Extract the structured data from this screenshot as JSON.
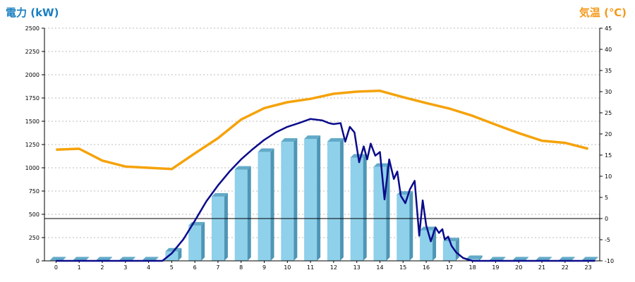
{
  "colors": {
    "left_axis": "#1a7fc1",
    "right_axis": "#f39a1b",
    "bar_front": "#8fd0ea",
    "bar_side": "#4e96b5",
    "bar_top": "#62aac8",
    "power_line": "#0b0b8c",
    "temp_line": "#f5a20a",
    "grid": "#bbbbbb"
  },
  "chart_data": {
    "type": "bar",
    "title": "",
    "y_label_left": "電力 (kW)",
    "y_label_right": "気温 (℃)",
    "grid": true,
    "left_axis": {
      "min": 0,
      "max": 2500,
      "step": 250,
      "ticks": [
        "0",
        "250",
        "500",
        "750",
        "1000",
        "1250",
        "1500",
        "1750",
        "2000",
        "2250",
        "2500"
      ]
    },
    "right_axis": {
      "min": -10,
      "max": 45,
      "step": 5,
      "ticks": [
        "-10",
        "-5",
        "0",
        "5",
        "10",
        "15",
        "20",
        "25",
        "30",
        "35",
        "40",
        "45"
      ]
    },
    "categories": [
      "0",
      "1",
      "2",
      "3",
      "4",
      "5",
      "6",
      "7",
      "8",
      "9",
      "10",
      "11",
      "12",
      "13",
      "14",
      "15",
      "16",
      "17",
      "18",
      "19",
      "20",
      "21",
      "22",
      "23"
    ],
    "series": [
      {
        "kind": "bar",
        "axis": "left",
        "values": [
          5,
          5,
          5,
          5,
          5,
          100,
          380,
          690,
          980,
          1170,
          1280,
          1310,
          1280,
          1110,
          1010,
          710,
          330,
          210,
          20,
          5,
          5,
          5,
          5,
          5
        ]
      },
      {
        "kind": "line",
        "axis": "left",
        "points": [
          [
            0,
            0
          ],
          [
            4.6,
            0
          ],
          [
            5,
            80
          ],
          [
            5.5,
            230
          ],
          [
            6,
            430
          ],
          [
            6.5,
            640
          ],
          [
            7,
            810
          ],
          [
            7.5,
            960
          ],
          [
            8,
            1090
          ],
          [
            8.5,
            1200
          ],
          [
            9,
            1300
          ],
          [
            9.5,
            1380
          ],
          [
            10,
            1440
          ],
          [
            10.5,
            1480
          ],
          [
            11,
            1525
          ],
          [
            11.5,
            1510
          ],
          [
            11.8,
            1480
          ],
          [
            12,
            1470
          ],
          [
            12.3,
            1480
          ],
          [
            12.5,
            1280
          ],
          [
            12.7,
            1440
          ],
          [
            12.9,
            1380
          ],
          [
            13.1,
            1060
          ],
          [
            13.3,
            1230
          ],
          [
            13.45,
            1090
          ],
          [
            13.6,
            1260
          ],
          [
            13.8,
            1130
          ],
          [
            14,
            1170
          ],
          [
            14.2,
            660
          ],
          [
            14.4,
            1090
          ],
          [
            14.6,
            880
          ],
          [
            14.75,
            960
          ],
          [
            14.9,
            700
          ],
          [
            15.1,
            620
          ],
          [
            15.3,
            770
          ],
          [
            15.5,
            860
          ],
          [
            15.7,
            270
          ],
          [
            15.85,
            650
          ],
          [
            16,
            380
          ],
          [
            16.2,
            210
          ],
          [
            16.4,
            360
          ],
          [
            16.55,
            300
          ],
          [
            16.7,
            340
          ],
          [
            16.8,
            230
          ],
          [
            16.95,
            260
          ],
          [
            17.1,
            160
          ],
          [
            17.3,
            90
          ],
          [
            17.6,
            30
          ],
          [
            18,
            0
          ],
          [
            23.3,
            0
          ]
        ]
      },
      {
        "kind": "line",
        "axis": "right",
        "points": [
          [
            0,
            16.3
          ],
          [
            1,
            16.5
          ],
          [
            2,
            13.7
          ],
          [
            3,
            12.3
          ],
          [
            4,
            12.0
          ],
          [
            5,
            11.7
          ],
          [
            6,
            15.4
          ],
          [
            7,
            19.0
          ],
          [
            8,
            23.4
          ],
          [
            9,
            26.1
          ],
          [
            10,
            27.5
          ],
          [
            11,
            28.3
          ],
          [
            12,
            29.5
          ],
          [
            13,
            30.0
          ],
          [
            14,
            30.2
          ],
          [
            15,
            28.7
          ],
          [
            16,
            27.3
          ],
          [
            17,
            26.0
          ],
          [
            18,
            24.3
          ],
          [
            19,
            22.2
          ],
          [
            20,
            20.2
          ],
          [
            21,
            18.4
          ],
          [
            22,
            17.9
          ],
          [
            23,
            16.5
          ]
        ]
      }
    ]
  }
}
